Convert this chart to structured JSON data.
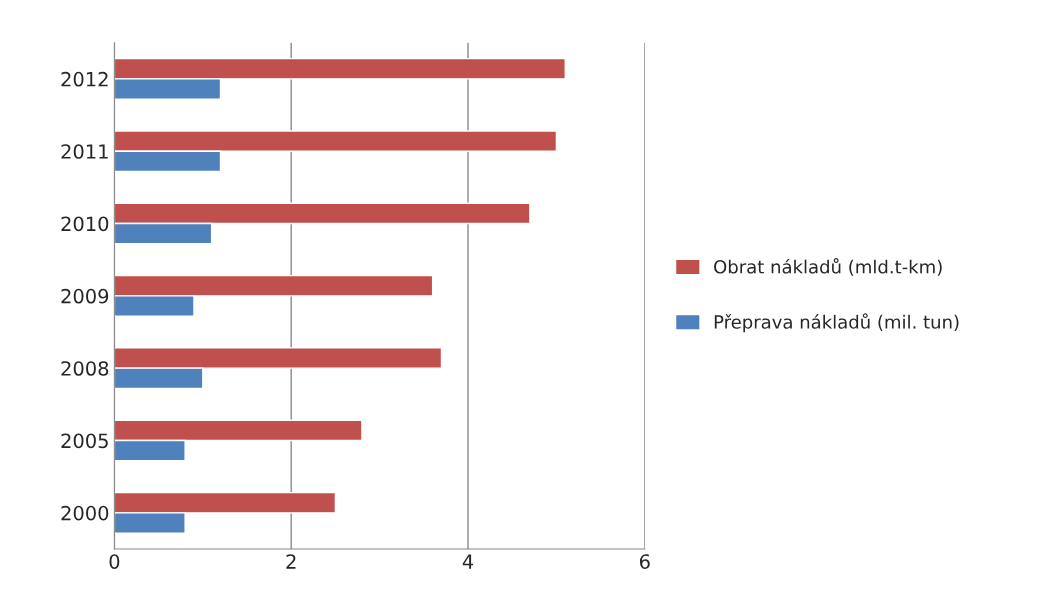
{
  "chart_data": {
    "type": "bar",
    "orientation": "horizontal",
    "categories": [
      "2012",
      "2011",
      "2010",
      "2009",
      "2008",
      "2005",
      "2000"
    ],
    "series": [
      {
        "name": "Obrat nákladů (mld.t-km)",
        "color": "#c0504d",
        "values": [
          5.1,
          5.0,
          4.7,
          3.6,
          3.7,
          2.8,
          2.5
        ]
      },
      {
        "name": "Přeprava nákladů (mil. tun)",
        "color": "#4f81bd",
        "values": [
          1.2,
          1.2,
          1.1,
          0.9,
          1.0,
          0.8,
          0.8
        ]
      }
    ],
    "xlim": [
      0,
      6
    ],
    "xticks": [
      0,
      2,
      4,
      6
    ],
    "grid": "x",
    "legend": "right"
  }
}
